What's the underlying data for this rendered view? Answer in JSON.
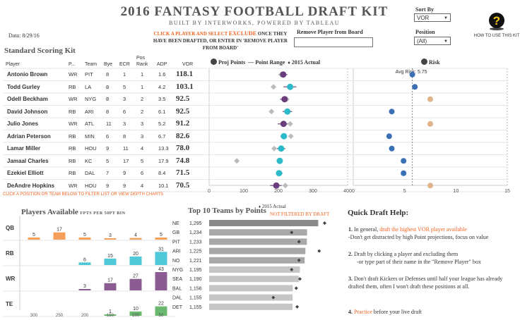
{
  "header": {
    "title": "2016 FANTASY FOOTBALL DRAFT KIT",
    "subtitle": "BUILT BY INTERWORKS, POWERED BY TABLEAU",
    "date_label": "Data: 8/29/16",
    "instruction_parts": [
      "CLICK A PLAYER AND SELECT ",
      "EXCLUDE",
      " ONCE THEY HAVE BEEN DRAFTED, OR ENTER IN 'REMOVE PLAYER FROM BOARD'"
    ],
    "remove_label": "Remove Player from Board",
    "remove_value": "",
    "sort_label": "Sort By",
    "sort_value": "VOR",
    "position_label": "Position",
    "position_value": "(All)",
    "how_to": "HOW TO USE THIS KIT"
  },
  "table": {
    "section_title": "Standard Scoring Kit",
    "columns": {
      "player": "Player",
      "pos": "P...",
      "team": "Team",
      "bye": "Bye",
      "ecr": "ECR",
      "posrank": "Pos Rank",
      "adp": "ADP",
      "vor": "VOR"
    },
    "rows": [
      {
        "player": "Antonio Brown",
        "pos": "WR",
        "team": "PIT",
        "bye": "8",
        "ecr": "1",
        "posrank": "1",
        "adp": "1.6",
        "vor": "118.1",
        "proj": 214,
        "lo": 200,
        "hi": 226,
        "actual": 208,
        "risk": 5.75,
        "color": "#6a3d7c",
        "riskColor": "#3b6fb6"
      },
      {
        "player": "Todd Gurley",
        "pos": "RB",
        "team": "LA",
        "bye": "8",
        "ecr": "5",
        "posrank": "1",
        "adp": "4.2",
        "vor": "103.1",
        "proj": 234,
        "lo": 215,
        "hi": 252,
        "actual": 186,
        "risk": 6.0,
        "color": "#2bbac9",
        "riskColor": "#3b6fb6"
      },
      {
        "player": "Odell Beckham",
        "pos": "WR",
        "team": "NYG",
        "bye": "8",
        "ecr": "3",
        "posrank": "2",
        "adp": "3.5",
        "vor": "92.5",
        "proj": 218,
        "lo": 205,
        "hi": 230,
        "actual": 224,
        "risk": 7.5,
        "color": "#6a3d7c",
        "riskColor": "#e0b48a"
      },
      {
        "player": "David Johnson",
        "pos": "RB",
        "team": "ARI",
        "bye": "8",
        "ecr": "6",
        "posrank": "2",
        "adp": "6.1",
        "vor": "92.5",
        "proj": 226,
        "lo": 212,
        "hi": 240,
        "actual": 180,
        "risk": 3.75,
        "color": "#2bbac9",
        "riskColor": "#3b6fb6"
      },
      {
        "player": "Julio Jones",
        "pos": "WR",
        "team": "ATL",
        "bye": "11",
        "ecr": "3",
        "posrank": "3",
        "adp": "5.2",
        "vor": "91.2",
        "proj": 215,
        "lo": 198,
        "hi": 228,
        "actual": 234,
        "risk": 7.5,
        "color": "#6a3d7c",
        "riskColor": "#e0b48a"
      },
      {
        "player": "Adrian Peterson",
        "pos": "RB",
        "team": "MIN",
        "bye": "6",
        "ecr": "8",
        "posrank": "3",
        "adp": "6.7",
        "vor": "82.6",
        "proj": 216,
        "lo": 206,
        "hi": 224,
        "actual": 236,
        "risk": 3.5,
        "color": "#2bbac9",
        "riskColor": "#3b6fb6"
      },
      {
        "player": "Lamar Miller",
        "pos": "RB",
        "team": "HOU",
        "bye": "9",
        "ecr": "11",
        "posrank": "4",
        "adp": "13.3",
        "vor": "78.0",
        "proj": 208,
        "lo": 196,
        "hi": 220,
        "actual": 188,
        "risk": 3.75,
        "color": "#2bbac9",
        "riskColor": "#3b6fb6"
      },
      {
        "player": "Jamaal Charles",
        "pos": "RB",
        "team": "KC",
        "bye": "5",
        "ecr": "17",
        "posrank": "5",
        "adp": "17.9",
        "vor": "74.8",
        "proj": 204,
        "lo": 196,
        "hi": 212,
        "actual": 80,
        "risk": 4.9,
        "color": "#2bbac9",
        "riskColor": "#3b6fb6"
      },
      {
        "player": "Ezekiel Elliott",
        "pos": "RB",
        "team": "DAL",
        "bye": "7",
        "ecr": "9",
        "posrank": "6",
        "adp": "8.4",
        "vor": "71.5",
        "proj": 202,
        "lo": 193,
        "hi": 212,
        "actual": null,
        "risk": 4.9,
        "color": "#2bbac9",
        "riskColor": "#3b6fb6"
      },
      {
        "player": "DeAndre Hopkins",
        "pos": "WR",
        "team": "HOU",
        "bye": "9",
        "ecr": "9",
        "posrank": "4",
        "adp": "10.1",
        "vor": "70.5",
        "proj": 194,
        "lo": 176,
        "hi": 210,
        "actual": 220,
        "risk": 7.5,
        "color": "#6a3d7c",
        "riskColor": "#e0b48a"
      }
    ]
  },
  "proj_chart": {
    "legend": {
      "proj": "Proj Points",
      "range": "Point Range",
      "actual": "2015 Actual"
    },
    "ticks": [
      "0",
      "100",
      "200",
      "300",
      "400"
    ],
    "xlim": [
      0,
      400
    ]
  },
  "risk_chart": {
    "legend": "Risk",
    "ticks": [
      "0",
      "5",
      "10",
      "15"
    ],
    "xlim": [
      0,
      15
    ],
    "avg_label": "Avg Risk: 5.75",
    "avg": 5.75
  },
  "filter_note": "CLICK A POSITION OR TEAM BELOW TO FILTER LIST OR VIEW DEPTH CHARTS",
  "players_available": {
    "title": "Players Available",
    "subtitle": "FPTS PER 50PT BIN",
    "bins": [
      "300",
      "250",
      "200",
      "150",
      "100",
      "50"
    ],
    "max": 43,
    "rows": [
      {
        "pos": "QB",
        "color": "#f5a05a",
        "values": [
          5,
          17,
          5,
          3,
          4,
          5
        ]
      },
      {
        "pos": "RB",
        "color": "#4fc9d6",
        "values": [
          0,
          0,
          6,
          15,
          20,
          31
        ]
      },
      {
        "pos": "WR",
        "color": "#8a5c92",
        "values": [
          0,
          0,
          3,
          17,
          27,
          43
        ]
      },
      {
        "pos": "TE",
        "color": "#6ab96f",
        "values": [
          0,
          0,
          0,
          1,
          10,
          22
        ]
      }
    ]
  },
  "top_teams": {
    "title": "Top 10 Teams by Points",
    "note": "NOT FILTERED BY DRAFT",
    "legend": "2015 Actual",
    "max": 1295,
    "teams": [
      {
        "team": "NE",
        "value": "1,295",
        "v": 1295,
        "actual": 1330
      },
      {
        "team": "GB",
        "value": "1,234",
        "v": 1234,
        "actual": 1150
      },
      {
        "team": "PIT",
        "value": "1,233",
        "v": 1233,
        "actual": 1190
      },
      {
        "team": "ARI",
        "value": "1,225",
        "v": 1225,
        "actual": 1300
      },
      {
        "team": "NO",
        "value": "1,221",
        "v": 1221,
        "actual": 1190
      },
      {
        "team": "NYG",
        "value": "1,195",
        "v": 1195,
        "actual": 1150
      },
      {
        "team": "SEA",
        "value": "1,190",
        "v": 1190,
        "actual": 1195
      },
      {
        "team": "BAL",
        "value": "1,156",
        "v": 1156,
        "actual": 1175
      },
      {
        "team": "DAL",
        "value": "1,155",
        "v": 1155,
        "actual": 1050
      },
      {
        "team": "DET",
        "value": "1,155",
        "v": 1155,
        "actual": 1180
      }
    ]
  },
  "quick_help": {
    "title": "Quick Draft Help:",
    "items": [
      {
        "num": "1.",
        "pre": " In general, ",
        "hl": "draft the highest VOR player available",
        "post": "",
        "sub": "-Don't get distracted by high Point projections, focus on value"
      },
      {
        "num": "2.",
        "pre": " Draft by clicking a player and excluding them",
        "hl": "",
        "post": "",
        "sub": "-or type part of their name in the \"Remove Player\" box"
      },
      {
        "num": "3.",
        "pre": " Don't draft Kickers or Defenses until half your league has already drafted them, often I won't draft these positions at all.",
        "hl": "",
        "post": "",
        "sub": ""
      },
      {
        "num": "4.",
        "pre": " ",
        "hl": "Practice",
        "post": " before your live draft",
        "sub": ""
      }
    ]
  },
  "colors": {
    "accent": "#f26522",
    "proj_wr": "#6a3d7c",
    "proj_rb": "#2bbac9",
    "risk_high": "#e0b48a",
    "risk_low": "#3b6fb6"
  }
}
